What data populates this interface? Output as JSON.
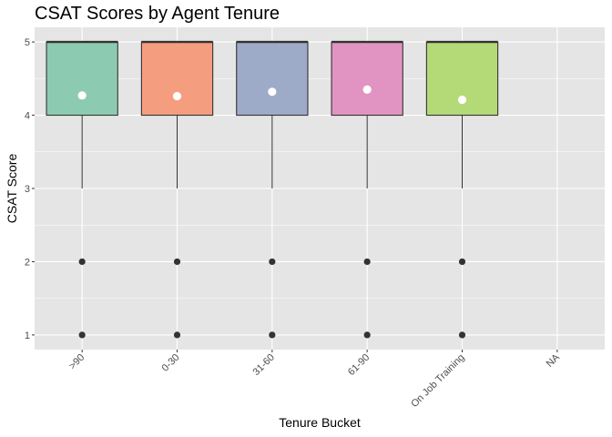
{
  "chart_data": {
    "type": "boxplot",
    "title": "CSAT Scores by Agent Tenure",
    "xlabel": "Tenure Bucket",
    "ylabel": "CSAT Score",
    "ylim": [
      0.8,
      5.2
    ],
    "yticks": [
      1,
      2,
      3,
      4,
      5
    ],
    "grid": true,
    "legend": "none",
    "categories": [
      ">90",
      "0-30",
      "31-60",
      "61-90",
      "On Job Training",
      "NA"
    ],
    "boxes": [
      {
        "category": ">90",
        "q1": 4,
        "median": 5,
        "q3": 5,
        "whisker_low": 3,
        "whisker_high": 5,
        "mean": 4.27,
        "outliers": [
          1,
          2
        ],
        "color": "#8ccbb1"
      },
      {
        "category": "0-30",
        "q1": 4,
        "median": 5,
        "q3": 5,
        "whisker_low": 3,
        "whisker_high": 5,
        "mean": 4.26,
        "outliers": [
          1,
          2
        ],
        "color": "#f59d7f"
      },
      {
        "category": "31-60",
        "q1": 4,
        "median": 5,
        "q3": 5,
        "whisker_low": 3,
        "whisker_high": 5,
        "mean": 4.32,
        "outliers": [
          1,
          2
        ],
        "color": "#9daac8"
      },
      {
        "category": "61-90",
        "q1": 4,
        "median": 5,
        "q3": 5,
        "whisker_low": 3,
        "whisker_high": 5,
        "mean": 4.35,
        "outliers": [
          1,
          2
        ],
        "color": "#e194c1"
      },
      {
        "category": "On Job Training",
        "q1": 4,
        "median": 5,
        "q3": 5,
        "whisker_low": 3,
        "whisker_high": 5,
        "mean": 4.21,
        "outliers": [
          1,
          2
        ],
        "color": "#b4d977"
      }
    ],
    "panel_background": "#e5e5e5",
    "gridline_color": "#ffffff",
    "mean_marker_color": "#ffffff",
    "outlier_color": "#333333"
  }
}
